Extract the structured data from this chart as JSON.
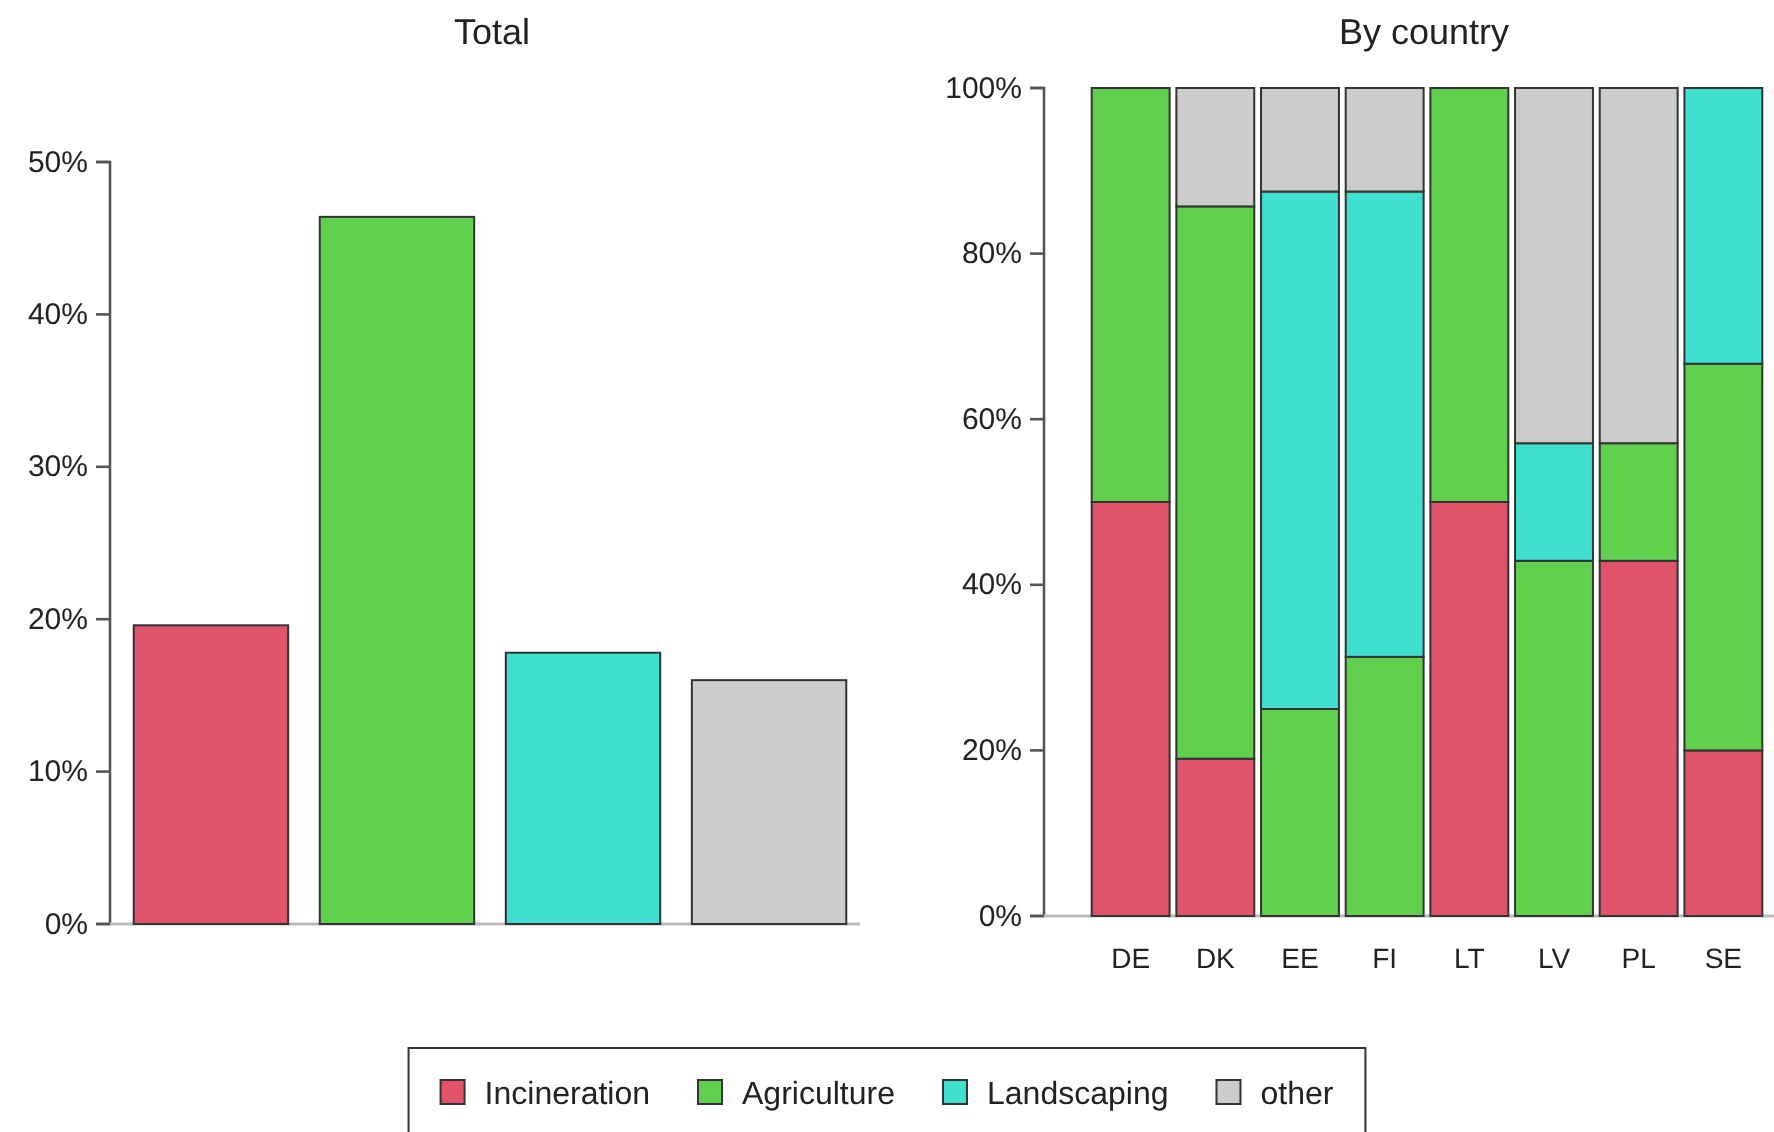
{
  "chart_data": [
    {
      "type": "bar",
      "title": "Total",
      "categories": [
        null,
        null,
        null,
        null
      ],
      "values": [
        19.6,
        46.4,
        17.8,
        16.0
      ],
      "colors": [
        "#df536b",
        "#61d04f",
        "#3fe0d0",
        "#cccccc"
      ],
      "ylim": [
        0,
        50
      ],
      "yticks": [
        {
          "value": 0,
          "label": "0%"
        },
        {
          "value": 10,
          "label": "10%"
        },
        {
          "value": 20,
          "label": "20%"
        },
        {
          "value": 30,
          "label": "30%"
        },
        {
          "value": 40,
          "label": "40%"
        },
        {
          "value": 50,
          "label": "50%"
        }
      ]
    },
    {
      "type": "bar",
      "title": "By country",
      "stacked": true,
      "legend": "bottom",
      "categories": [
        "DE",
        "DK",
        "EE",
        "FI",
        "LT",
        "LV",
        "PL",
        "SE"
      ],
      "series": [
        {
          "name": "Incineration",
          "color": "#df536b",
          "values": [
            50,
            19,
            0,
            0,
            50,
            0,
            42.9,
            20
          ]
        },
        {
          "name": "Agriculture",
          "color": "#61d04f",
          "values": [
            50,
            66.7,
            25,
            31.3,
            50,
            42.9,
            14.2,
            46.7
          ]
        },
        {
          "name": "Landscaping",
          "color": "#3fe0d0",
          "values": [
            0,
            0,
            62.5,
            56.2,
            0,
            14.2,
            0,
            33.3
          ]
        },
        {
          "name": "other",
          "color": "#cccccc",
          "values": [
            0,
            14.3,
            12.5,
            12.5,
            0,
            42.9,
            42.9,
            0
          ]
        }
      ],
      "ylim": [
        0,
        100
      ],
      "yticks": [
        {
          "value": 0,
          "label": "0%"
        },
        {
          "value": 20,
          "label": "20%"
        },
        {
          "value": 40,
          "label": "40%"
        },
        {
          "value": 60,
          "label": "60%"
        },
        {
          "value": 80,
          "label": "80%"
        },
        {
          "value": 100,
          "label": "100%"
        }
      ]
    }
  ]
}
